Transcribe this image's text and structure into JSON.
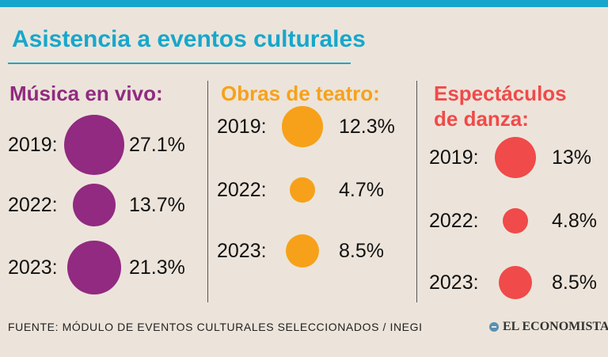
{
  "title": "Asistencia a eventos culturales",
  "source": "FUENTE: MÓDULO DE EVENTOS CULTURALES SELECCIONADOS / INEGI",
  "brand": "EL ECONOMISTA",
  "chart_data": [
    {
      "type": "bubble",
      "title": "Música en vivo:",
      "color": "#912a80",
      "categories": [
        "2019:",
        "2022:",
        "2023:"
      ],
      "values": [
        27.1,
        13.7,
        21.3
      ],
      "value_labels": [
        "27.1%",
        "13.7%",
        "21.3%"
      ]
    },
    {
      "type": "bubble",
      "title": "Obras de teatro:",
      "color": "#f7a11a",
      "categories": [
        "2019:",
        "2022:",
        "2023:"
      ],
      "values": [
        12.3,
        4.7,
        8.5
      ],
      "value_labels": [
        "12.3%",
        "4.7%",
        "8.5%"
      ]
    },
    {
      "type": "bubble",
      "title": "Espectáculos de danza:",
      "color": "#f04a4a",
      "categories": [
        "2019:",
        "2022:",
        "2023:"
      ],
      "values": [
        13,
        4.8,
        8.5
      ],
      "value_labels": [
        "13%",
        "4.8%",
        "8.5%"
      ]
    }
  ]
}
